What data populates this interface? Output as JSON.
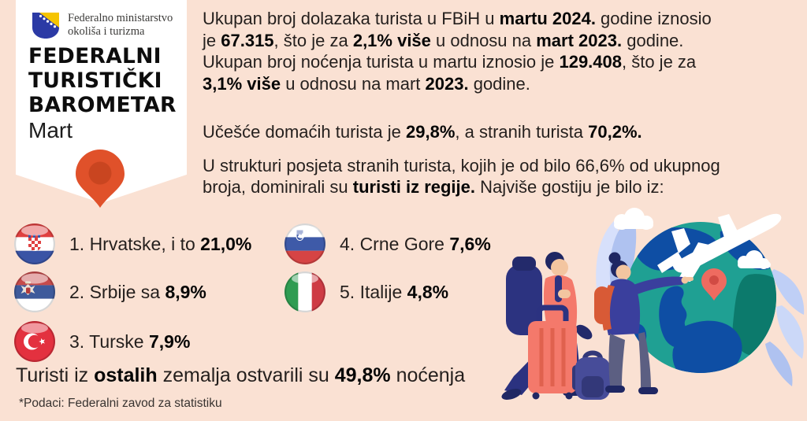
{
  "logo": {
    "ministry_lines": [
      "Federalno ministarstvo",
      "okoliša i turizma"
    ]
  },
  "header": {
    "title_lines": [
      "FEDERALNI",
      "TURISTIČKI",
      "BAROMETAR"
    ],
    "month": "Mart"
  },
  "intro": {
    "para1_lines": [
      [
        {
          "t": "Ukupan broj dolazaka turista u FBiH u "
        },
        {
          "t": "martu 2024.",
          "b": true
        },
        {
          "t": " godine iznosio"
        }
      ],
      [
        {
          "t": "je "
        },
        {
          "t": "67.315",
          "b": true
        },
        {
          "t": ", što je za "
        },
        {
          "t": "2,1% više",
          "b": true
        },
        {
          "t": " u odnosu na "
        },
        {
          "t": "mart 2023.",
          "b": true
        },
        {
          "t": " godine."
        }
      ],
      [
        {
          "t": "Ukupan broj noćenja turista u martu iznosio je "
        },
        {
          "t": "129.408",
          "b": true
        },
        {
          "t": ", što je za"
        }
      ],
      [
        {
          "t": "3,1% više",
          "b": true
        },
        {
          "t": " u odnosu na mart "
        },
        {
          "t": "2023.",
          "b": true
        },
        {
          "t": " godine."
        }
      ]
    ],
    "para2_lines": [
      [
        {
          "t": "Učešće domaćih turista je "
        },
        {
          "t": "29,8%",
          "b": true
        },
        {
          "t": ", a stranih turista "
        },
        {
          "t": "70,2%.",
          "b": true
        }
      ]
    ],
    "para3_lines": [
      [
        {
          "t": "U strukturi posjeta stranih turista, kojih je od bilo 66,6% od ukupnog"
        }
      ],
      [
        {
          "t": "broja, dominirali su "
        },
        {
          "t": "turisti iz regije.",
          "b": true
        },
        {
          "t": " Najviše gostiju je bilo iz:"
        }
      ]
    ]
  },
  "countries": {
    "items": [
      {
        "rank": "1",
        "share": "21,0%",
        "flag": "croatia",
        "segments": [
          {
            "t": "1. Hrvatske, i to "
          },
          {
            "t": "21,0%",
            "b": true
          }
        ]
      },
      {
        "rank": "2",
        "share": "8,9%",
        "flag": "serbia",
        "segments": [
          {
            "t": "2. Srbije sa "
          },
          {
            "t": "8,9%",
            "b": true
          }
        ]
      },
      {
        "rank": "3",
        "share": "7,9%",
        "flag": "turkey",
        "segments": [
          {
            "t": "3. Turske "
          },
          {
            "t": "7,9%",
            "b": true
          }
        ]
      },
      {
        "rank": "4",
        "share": "7,6%",
        "flag": "slovenia-tricolor",
        "segments": [
          {
            "t": "4. Crne Gore "
          },
          {
            "t": "7,6%",
            "b": true
          }
        ]
      },
      {
        "rank": "5",
        "share": "4,8%",
        "flag": "italy",
        "segments": [
          {
            "t": "5. Italije "
          },
          {
            "t": "4,8%",
            "b": true
          }
        ]
      }
    ]
  },
  "footer": {
    "other_line": [
      {
        "t": "Turisti iz "
      },
      {
        "t": "ostalih",
        "b": true
      },
      {
        "t": " zemalja ostvarili su "
      },
      {
        "t": "49,8%",
        "b": true
      },
      {
        "t": " noćenja"
      }
    ],
    "source": "*Podaci: Federalni zavod za statistiku"
  },
  "colors": {
    "background": "#FAE1D3",
    "ribbon": "#FFFFFF",
    "pin_orange": "#E0512A",
    "pin_orange_inner": "#C94520",
    "text_dark": "#241F1D",
    "globe_teal": "#1FA093",
    "globe_blue": "#0E4EA4",
    "illustration_salmon": "#F4796B",
    "illustration_navy": "#2B3280",
    "leaf_blue": "#B9CCF4"
  },
  "illustration": {
    "elements": [
      "tourist-man",
      "tourist-woman",
      "suitcase",
      "backpack",
      "globe",
      "airplane",
      "map-pin",
      "clouds",
      "leaves"
    ]
  }
}
